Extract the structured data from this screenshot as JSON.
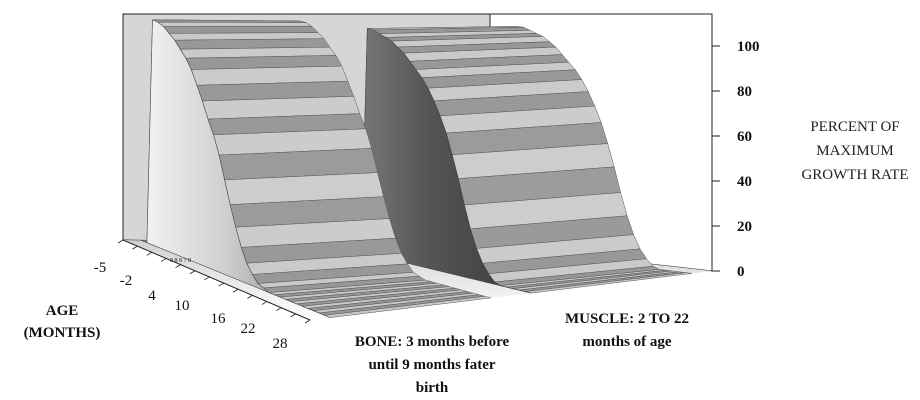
{
  "chart_data": {
    "type": "area",
    "projection": "3d",
    "x_axis": {
      "title": [
        "AGE",
        "(MONTHS)"
      ],
      "tick_labels": [
        "-5",
        "-2",
        "4",
        "10",
        "16",
        "22",
        "28"
      ],
      "minor_tick_text": "8 8 8 7 8"
    },
    "z_axis": {
      "title": [
        "PERCENT OF",
        "MAXIMUM",
        "GROWTH RATE"
      ],
      "tick_labels": [
        "100",
        "80",
        "60",
        "40",
        "20",
        "0"
      ],
      "range": [
        0,
        100
      ]
    },
    "series": [
      {
        "label": [
          "BONE: 3 months before",
          "until 9 months fater",
          "birth"
        ],
        "x": [
          -5,
          -4,
          -3,
          -2,
          -1,
          0,
          1,
          2,
          3,
          4,
          5,
          6,
          7,
          8,
          9,
          10,
          11,
          12,
          13,
          14,
          15,
          16,
          17,
          18,
          19,
          20,
          21,
          22,
          23,
          24,
          25,
          26,
          27,
          28,
          29
        ],
        "values": [
          0,
          0,
          100,
          100,
          99,
          97,
          95,
          92,
          89,
          85,
          79,
          73,
          66,
          60,
          52,
          42,
          32,
          23,
          15,
          9,
          5,
          2,
          1,
          0,
          0,
          0,
          0,
          0,
          0,
          0,
          0,
          0,
          0,
          0,
          0
        ]
      },
      {
        "label": [
          "MUSCLE: 2 TO 22",
          "months of age"
        ],
        "x": [
          -5,
          -4,
          -3,
          -2,
          -1,
          0,
          1,
          2,
          3,
          4,
          5,
          6,
          7,
          8,
          9,
          10,
          11,
          12,
          13,
          14,
          15,
          16,
          17,
          18,
          19,
          20,
          21,
          22,
          23,
          24,
          25,
          26,
          27,
          28,
          29
        ],
        "values": [
          0,
          0,
          0,
          0,
          0,
          0,
          0,
          100,
          100,
          99,
          98,
          97,
          95,
          93,
          90,
          87,
          84,
          80,
          75,
          69,
          62,
          53,
          43,
          32,
          22,
          14,
          8,
          4,
          1,
          0,
          0,
          0,
          0,
          0,
          0
        ]
      }
    ],
    "colors": {
      "left_wall": "#d6d6d6",
      "back_wall": "#ffffff",
      "frame": "#222222"
    }
  }
}
